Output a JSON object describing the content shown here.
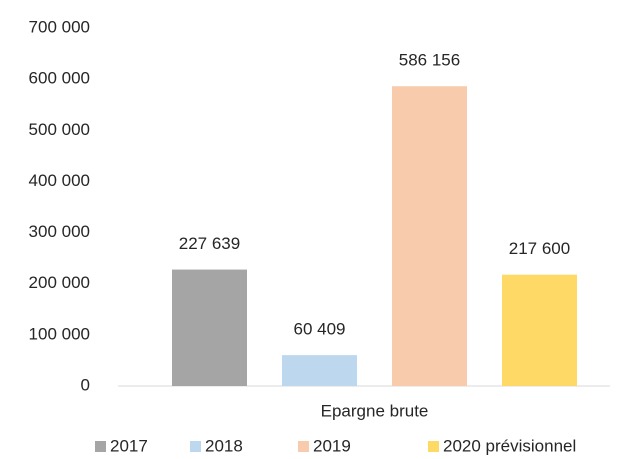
{
  "chart_data": {
    "type": "bar",
    "categories": [
      "Epargne brute"
    ],
    "series": [
      {
        "name": "2017",
        "color": "#a5a5a5",
        "values": [
          227639
        ],
        "value_labels": [
          "227 639"
        ]
      },
      {
        "name": "2018",
        "color": "#bdd7ee",
        "values": [
          60409
        ],
        "value_labels": [
          "60 409"
        ]
      },
      {
        "name": "2019",
        "color": "#f8cbad",
        "values": [
          586156
        ],
        "value_labels": [
          "586 156"
        ]
      },
      {
        "name": "2020 prévisionnel",
        "color": "#ffd966",
        "values": [
          217600
        ],
        "value_labels": [
          "217 600"
        ]
      }
    ],
    "ylim": [
      0,
      700000
    ],
    "yticks": [
      {
        "value": 0,
        "label": "0"
      },
      {
        "value": 100000,
        "label": "100 000"
      },
      {
        "value": 200000,
        "label": "200 000"
      },
      {
        "value": 300000,
        "label": "300 000"
      },
      {
        "value": 400000,
        "label": "400 000"
      },
      {
        "value": 500000,
        "label": "500 000"
      },
      {
        "value": 600000,
        "label": "600 000"
      },
      {
        "value": 700000,
        "label": "700 000"
      }
    ],
    "grid": false,
    "legend": "bottom"
  }
}
